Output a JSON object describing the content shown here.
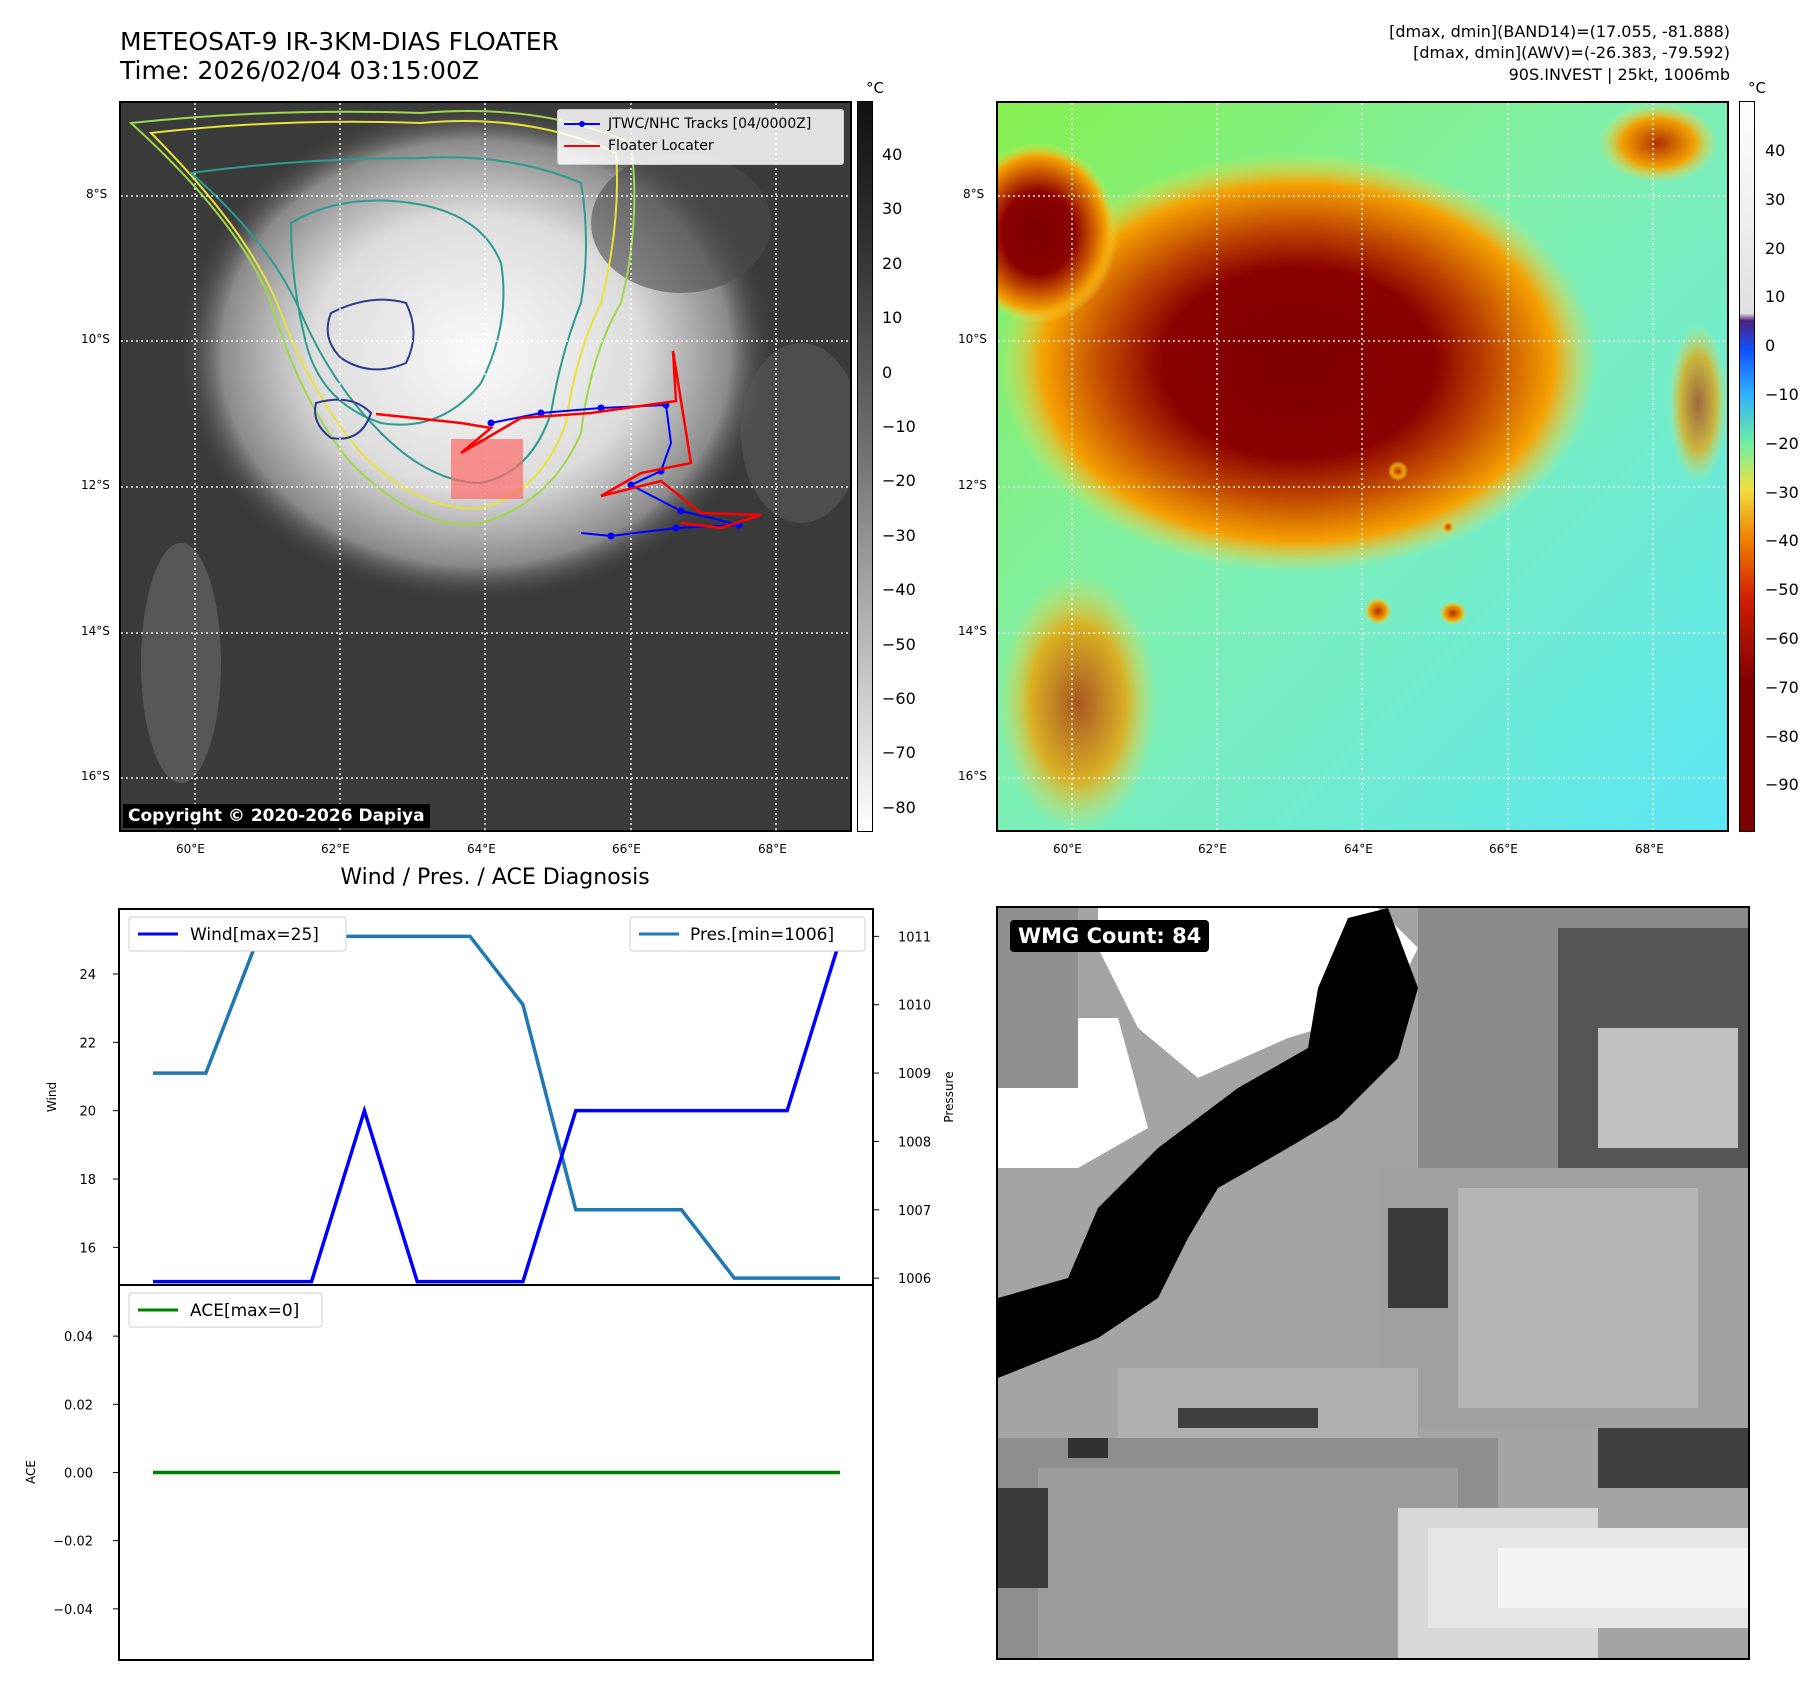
{
  "header": {
    "title_line1": "METEOSAT-9 IR-3KM-DIAS FLOATER",
    "title_line2": "Time: 2026/02/04 03:15:00Z",
    "info_line1": "[dmax, dmin](BAND14)=(17.055, -81.888)",
    "info_line2": "[dmax, dmin](AWV)=(-26.383, -79.592)",
    "info_line3": "90S.INVEST | 25kt, 1006mb"
  },
  "map_axes": {
    "lat_labels": [
      "8°S",
      "10°S",
      "12°S",
      "14°S",
      "16°S"
    ],
    "lon_labels": [
      "60°E",
      "62°E",
      "64°E",
      "66°E",
      "68°E"
    ]
  },
  "ir_panel": {
    "legend": [
      "JTWC/NHC Tracks [04/0000Z]",
      "Floater Locater"
    ],
    "copyright": "Copyright © 2020-2026 Dapiya",
    "colorbar_unit": "°C",
    "colorbar_ticks": [
      "40",
      "30",
      "20",
      "10",
      "0",
      "−10",
      "−20",
      "−30",
      "−40",
      "−50",
      "−60",
      "−70",
      "−80"
    ],
    "track_color": "#0000ff",
    "floater_color": "#ff0000"
  },
  "awv_panel": {
    "colorbar_unit": "°C",
    "colorbar_ticks": [
      "40",
      "30",
      "20",
      "10",
      "0",
      "−10",
      "−20",
      "−30",
      "−40",
      "−50",
      "−60",
      "−70",
      "−80",
      "−90"
    ]
  },
  "diag_title": "Wind / Pres. / ACE Diagnosis",
  "wmg_label": "WMG Count: 84",
  "chart_data": [
    {
      "type": "line",
      "title": "Wind / Pres. / ACE Diagnosis",
      "ylabel": "Wind",
      "y2label": "Pressure",
      "ylim": [
        14.9,
        25.9
      ],
      "y2lim": [
        1005.9,
        1011.4
      ],
      "yticks": [
        "16",
        "18",
        "20",
        "22",
        "24"
      ],
      "y2ticks": [
        "1006",
        "1007",
        "1008",
        "1009",
        "1010",
        "1011"
      ],
      "series": [
        {
          "name": "Wind[max=25]",
          "color": "#0000ff",
          "axis": "left",
          "values": [
            15,
            15,
            15,
            15,
            20,
            15,
            15,
            15,
            20,
            20,
            20,
            20,
            20,
            25
          ]
        },
        {
          "name": "Pres.[min=1006]",
          "color": "#1f77b4",
          "axis": "right",
          "values": [
            1009,
            1009,
            1011,
            1011,
            1011,
            1011,
            1011,
            1010,
            1007,
            1007,
            1007,
            1006,
            1006,
            1006
          ]
        }
      ]
    },
    {
      "type": "line",
      "ylabel": "ACE",
      "ylim": [
        -0.055,
        0.055
      ],
      "yticks": [
        "0.04",
        "0.02",
        "0.00",
        "−0.02",
        "−0.04"
      ],
      "series": [
        {
          "name": "ACE[max=0]",
          "color": "#008000",
          "values": [
            0,
            0,
            0,
            0,
            0,
            0,
            0,
            0,
            0,
            0,
            0,
            0,
            0,
            0
          ]
        }
      ]
    }
  ]
}
